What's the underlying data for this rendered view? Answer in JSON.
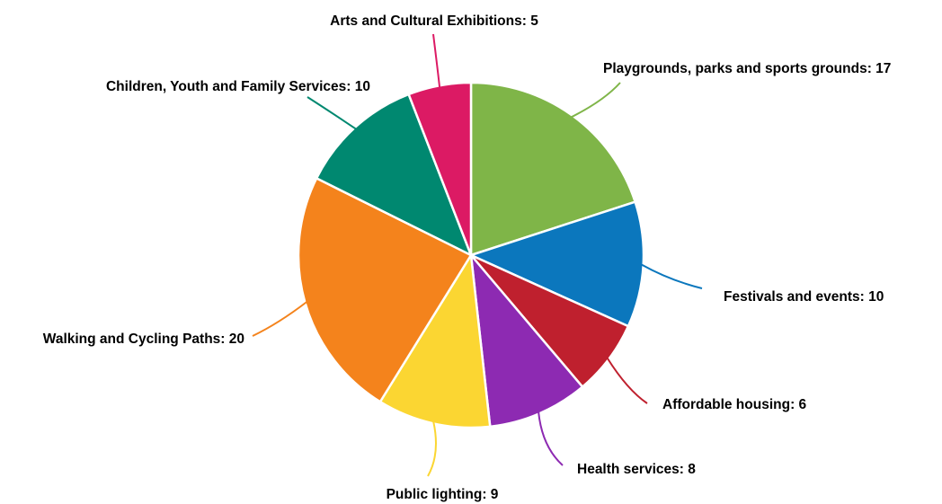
{
  "chart_data": {
    "type": "pie",
    "title": "",
    "legend": "none",
    "slices": [
      {
        "label": "Playgrounds, parks and sports grounds",
        "value": 17,
        "color": "#7fb548"
      },
      {
        "label": "Festivals and events",
        "value": 10,
        "color": "#0b77bd"
      },
      {
        "label": "Affordable housing",
        "value": 6,
        "color": "#bf202e"
      },
      {
        "label": "Health services",
        "value": 8,
        "color": "#8d2ab2"
      },
      {
        "label": "Public lighting",
        "value": 9,
        "color": "#fbd632"
      },
      {
        "label": "Walking and Cycling Paths",
        "value": 20,
        "color": "#f4831c"
      },
      {
        "label": "Children, Youth and  Family Services",
        "value": 10,
        "color": "#008870"
      },
      {
        "label": "Arts and Cultural Exhibitions",
        "value": 5,
        "color": "#dc1a64"
      }
    ],
    "data_labels": [
      "Playgrounds, parks and sports grounds: 17",
      "Festivals and events: 10",
      "Affordable housing: 6",
      "Health services: 8",
      "Public lighting: 9",
      "Walking and Cycling Paths: 20",
      "Children, Youth and  Family Services: 10",
      "Arts and Cultural Exhibitions: 5"
    ]
  }
}
